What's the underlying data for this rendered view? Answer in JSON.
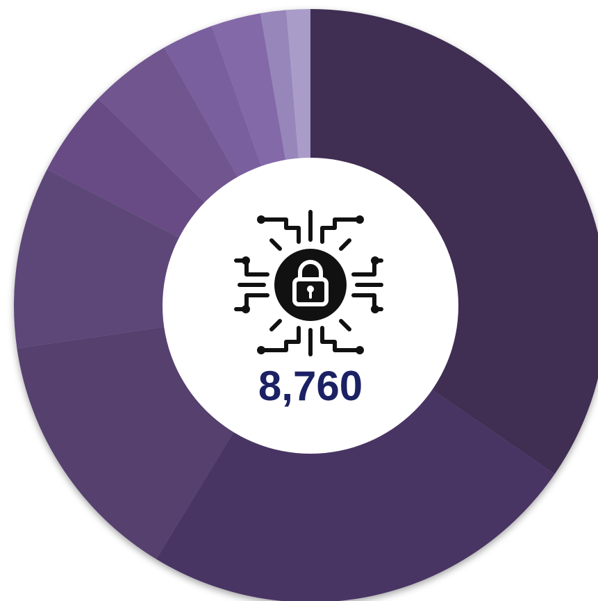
{
  "chart_data": {
    "type": "donut",
    "categories": [
      null,
      null,
      null,
      null,
      null,
      null,
      null,
      null,
      null,
      null
    ],
    "values": [
      34.6,
      24.1,
      14,
      9.9,
      4.7,
      4.5,
      2.8,
      2.7,
      1.4,
      1.3
    ],
    "colors": [
      "#3f2d52",
      "#4a3563",
      "#54406e",
      "#5d4678",
      "#684c85",
      "#70548f",
      "#7a5e9f",
      "#8469a9",
      "#9786ba",
      "#a99cc9"
    ],
    "center_label": "8,760"
  }
}
